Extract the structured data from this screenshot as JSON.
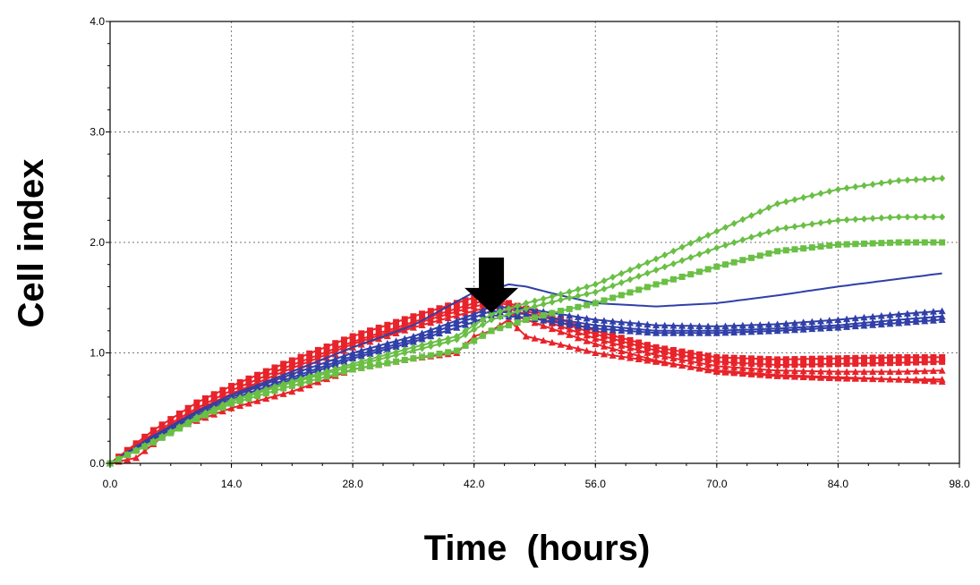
{
  "chart_data": {
    "type": "line",
    "title": "",
    "xlabel": "Time  (hours)",
    "ylabel": "Cell index",
    "xlim": [
      0,
      98
    ],
    "ylim": [
      0,
      4
    ],
    "xticks": [
      0,
      14,
      28,
      42,
      56,
      70,
      84,
      98
    ],
    "yticks": [
      0,
      1,
      2,
      3,
      4
    ],
    "xtick_labels": [
      "0.0",
      "14.0",
      "28.0",
      "42.0",
      "56.0",
      "70.0",
      "84.0",
      "98.0"
    ],
    "ytick_labels": [
      "0.0",
      "1.0",
      "2.0",
      "3.0",
      "4.0"
    ],
    "grid": true,
    "annotations": [
      {
        "type": "arrow-down",
        "x": 44,
        "y": 1.75
      }
    ],
    "series": [
      {
        "color": "#e8232a",
        "marker": "square",
        "markevery": 1,
        "x": [
          0,
          5,
          10,
          14,
          20,
          28,
          35,
          42,
          44,
          48,
          56,
          63,
          70,
          77,
          84,
          91,
          96
        ],
        "y": [
          0,
          0.3,
          0.55,
          0.7,
          0.9,
          1.15,
          1.33,
          1.5,
          1.5,
          1.4,
          1.2,
          1.05,
          0.96,
          0.94,
          0.95,
          0.96,
          0.96
        ]
      },
      {
        "color": "#e8232a",
        "marker": "square",
        "markevery": 1,
        "x": [
          0,
          5,
          10,
          14,
          20,
          28,
          35,
          42,
          44,
          48,
          56,
          63,
          70,
          77,
          84,
          91,
          96
        ],
        "y": [
          0,
          0.27,
          0.5,
          0.66,
          0.86,
          1.1,
          1.28,
          1.45,
          1.48,
          1.38,
          1.17,
          1.02,
          0.92,
          0.89,
          0.9,
          0.91,
          0.92
        ]
      },
      {
        "color": "#e8232a",
        "marker": "triangle",
        "markevery": 1,
        "x": [
          0,
          5,
          10,
          14,
          20,
          28,
          35,
          42,
          44,
          48,
          56,
          63,
          70,
          77,
          84,
          91,
          96
        ],
        "y": [
          0,
          0.25,
          0.48,
          0.63,
          0.83,
          1.08,
          1.26,
          1.42,
          1.45,
          1.35,
          1.13,
          0.98,
          0.88,
          0.84,
          0.83,
          0.83,
          0.84
        ]
      },
      {
        "color": "#e8232a",
        "marker": "triangle",
        "markevery": 1,
        "x": [
          0,
          5,
          10,
          14,
          20,
          28,
          35,
          42,
          44,
          48,
          56,
          63,
          70,
          77,
          84,
          91,
          96
        ],
        "y": [
          0,
          0.24,
          0.46,
          0.6,
          0.8,
          1.05,
          1.23,
          1.38,
          1.42,
          1.3,
          1.08,
          0.93,
          0.83,
          0.79,
          0.77,
          0.76,
          0.76
        ]
      },
      {
        "color": "#e8232a",
        "marker": "triangle",
        "markevery": 1,
        "x": [
          0,
          3,
          7,
          14,
          21,
          28,
          35,
          40,
          42,
          44,
          46,
          48,
          56,
          63,
          70,
          77,
          84,
          91,
          96
        ],
        "y": [
          0,
          0.05,
          0.3,
          0.5,
          0.65,
          0.85,
          0.95,
          1.0,
          1.15,
          1.2,
          1.3,
          1.15,
          1.0,
          0.92,
          0.84,
          0.8,
          0.78,
          0.76,
          0.74
        ]
      },
      {
        "color": "#3040a8",
        "marker": "none",
        "markevery": 1,
        "x": [
          0,
          5,
          10,
          14,
          20,
          28,
          35,
          42,
          44,
          46,
          48,
          52,
          56,
          63,
          70,
          77,
          84,
          91,
          96
        ],
        "y": [
          0,
          0.25,
          0.47,
          0.62,
          0.8,
          1.05,
          1.25,
          1.55,
          1.57,
          1.62,
          1.6,
          1.52,
          1.45,
          1.42,
          1.45,
          1.52,
          1.6,
          1.67,
          1.72
        ]
      },
      {
        "color": "#3040a8",
        "marker": "triangle",
        "markevery": 1,
        "x": [
          0,
          5,
          10,
          14,
          20,
          28,
          35,
          42,
          44,
          48,
          56,
          63,
          70,
          77,
          84,
          91,
          96
        ],
        "y": [
          0,
          0.23,
          0.45,
          0.6,
          0.78,
          1.0,
          1.15,
          1.35,
          1.42,
          1.4,
          1.3,
          1.25,
          1.24,
          1.26,
          1.3,
          1.35,
          1.38
        ]
      },
      {
        "color": "#3040a8",
        "marker": "triangle",
        "markevery": 1,
        "x": [
          0,
          5,
          10,
          14,
          20,
          28,
          35,
          42,
          44,
          48,
          56,
          63,
          70,
          77,
          84,
          91,
          96
        ],
        "y": [
          0,
          0.22,
          0.43,
          0.58,
          0.75,
          0.97,
          1.12,
          1.32,
          1.38,
          1.35,
          1.25,
          1.2,
          1.2,
          1.22,
          1.25,
          1.3,
          1.33
        ]
      },
      {
        "color": "#3040a8",
        "marker": "triangle",
        "markevery": 1,
        "x": [
          0,
          5,
          10,
          14,
          20,
          28,
          35,
          42,
          44,
          48,
          56,
          63,
          70,
          77,
          84,
          91,
          96
        ],
        "y": [
          0,
          0.21,
          0.42,
          0.56,
          0.73,
          0.95,
          1.1,
          1.28,
          1.34,
          1.32,
          1.22,
          1.18,
          1.18,
          1.2,
          1.23,
          1.27,
          1.3
        ]
      },
      {
        "color": "#6abf45",
        "marker": "diamond",
        "markevery": 1,
        "x": [
          0,
          5,
          10,
          14,
          20,
          28,
          35,
          40,
          44,
          48,
          52,
          56,
          63,
          70,
          77,
          84,
          91,
          96
        ],
        "y": [
          0,
          0.2,
          0.42,
          0.57,
          0.72,
          0.9,
          1.05,
          1.15,
          1.35,
          1.45,
          1.53,
          1.62,
          1.85,
          2.1,
          2.35,
          2.48,
          2.56,
          2.58
        ]
      },
      {
        "color": "#6abf45",
        "marker": "diamond",
        "markevery": 1,
        "x": [
          0,
          5,
          10,
          14,
          20,
          28,
          35,
          40,
          44,
          48,
          52,
          56,
          63,
          70,
          77,
          84,
          91,
          96
        ],
        "y": [
          0,
          0.2,
          0.41,
          0.56,
          0.71,
          0.88,
          1.02,
          1.12,
          1.3,
          1.4,
          1.48,
          1.55,
          1.75,
          1.95,
          2.12,
          2.2,
          2.23,
          2.23
        ]
      },
      {
        "color": "#6abf45",
        "marker": "square",
        "markevery": 1,
        "x": [
          0,
          5,
          10,
          14,
          20,
          28,
          35,
          40,
          44,
          48,
          52,
          56,
          63,
          70,
          77,
          84,
          91,
          96
        ],
        "y": [
          0,
          0.19,
          0.4,
          0.54,
          0.68,
          0.85,
          0.95,
          1.02,
          1.2,
          1.3,
          1.38,
          1.45,
          1.62,
          1.78,
          1.92,
          1.98,
          2.0,
          2.0
        ]
      }
    ]
  }
}
